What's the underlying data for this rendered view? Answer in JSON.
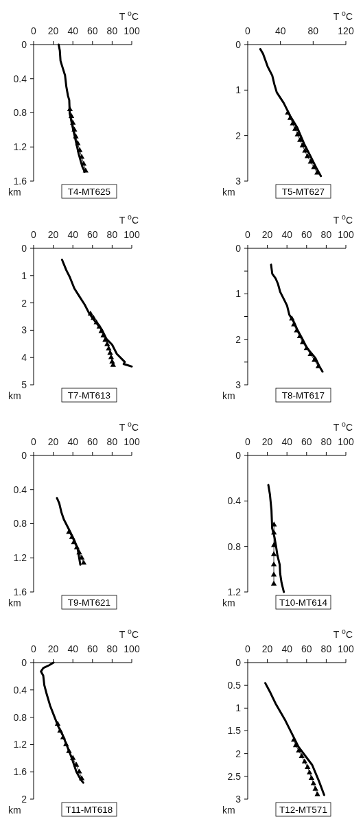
{
  "chart_data": [
    {
      "type": "line",
      "title": "T4-MT625",
      "xlabel": "T $^{o}$C",
      "ylabel": "km",
      "xlim": [
        0,
        100
      ],
      "xticks": [
        0,
        20,
        40,
        60,
        80,
        100
      ],
      "ylim": [
        1.6,
        0
      ],
      "yticks": [
        0,
        0.4,
        0.8,
        1.2,
        1.6
      ],
      "series": [
        {
          "color": "#000000",
          "marker": "none",
          "x": [
            25.5,
            26.7,
            27.4,
            29,
            32,
            33.3,
            35,
            36.3,
            36.8,
            39.8,
            42.6,
            46.1,
            49.6,
            52
          ],
          "values": [
            0,
            0.07,
            0.19,
            0.25,
            0.36,
            0.49,
            0.6,
            0.65,
            0.81,
            0.97,
            1.11,
            1.29,
            1.43,
            1.49
          ]
        },
        {
          "color": "#000000",
          "marker": "triangle",
          "x": [
            37,
            38.5,
            40,
            41.5,
            43,
            45,
            47,
            49,
            51,
            53
          ],
          "values": [
            0.76,
            0.84,
            0.92,
            1.0,
            1.08,
            1.16,
            1.24,
            1.32,
            1.4,
            1.48
          ]
        }
      ]
    },
    {
      "type": "line",
      "title": "T5-MT627",
      "xlabel": "T $^{o}$C",
      "ylabel": "km",
      "xlim": [
        0,
        120
      ],
      "xticks": [
        0,
        40,
        80,
        120
      ],
      "ylim": [
        3,
        0
      ],
      "yticks": [
        0,
        1,
        2,
        3
      ],
      "series": [
        {
          "color": "#000000",
          "marker": "none",
          "x": [
            15.4,
            18.7,
            24.3,
            30,
            32.7,
            35.5,
            43.9,
            52.3,
            60.7,
            69,
            77.5,
            84.5,
            89.5
          ],
          "values": [
            0.1,
            0.2,
            0.48,
            0.68,
            0.88,
            1.05,
            1.28,
            1.58,
            1.83,
            2.18,
            2.48,
            2.73,
            2.89
          ]
        },
        {
          "color": "#000000",
          "marker": "triangle",
          "x": [
            49,
            52,
            55,
            58,
            61,
            64,
            67,
            70,
            73,
            77,
            81,
            85
          ],
          "values": [
            1.5,
            1.62,
            1.74,
            1.86,
            1.98,
            2.1,
            2.22,
            2.34,
            2.46,
            2.58,
            2.7,
            2.82
          ]
        }
      ]
    },
    {
      "type": "line",
      "title": "T7-MT613",
      "xlabel": "T $^{o}$C",
      "ylabel": "km",
      "xlim": [
        0,
        100
      ],
      "xticks": [
        0,
        20,
        40,
        60,
        80,
        100
      ],
      "ylim": [
        5,
        0
      ],
      "yticks": [
        0,
        1,
        2,
        3,
        4,
        5
      ],
      "series": [
        {
          "color": "#000000",
          "marker": "none",
          "x": [
            29,
            33.3,
            36.8,
            41.5,
            47.3,
            52,
            56.7,
            63.7,
            69.6,
            74.2,
            80,
            84.8,
            90.6,
            92.9,
            91.8,
            96.5,
            100
          ],
          "values": [
            0.42,
            0.8,
            1.05,
            1.47,
            1.8,
            2.06,
            2.39,
            2.73,
            2.98,
            3.32,
            3.53,
            3.87,
            4.08,
            4.16,
            4.24,
            4.29,
            4.33
          ]
        },
        {
          "color": "#000000",
          "marker": "triangle",
          "x": [
            58,
            61,
            64,
            67,
            69,
            71,
            73,
            75,
            76.5,
            78,
            79,
            80,
            81
          ],
          "values": [
            2.4,
            2.56,
            2.72,
            2.88,
            3.04,
            3.2,
            3.36,
            3.52,
            3.68,
            3.84,
            4.0,
            4.16,
            4.28
          ]
        }
      ]
    },
    {
      "type": "line",
      "title": "T8-MT617",
      "xlabel": "T $^{o}$C",
      "ylabel": "km",
      "xlim": [
        0,
        100
      ],
      "xticks": [
        0,
        20,
        40,
        60,
        80,
        100
      ],
      "ylim": [
        3,
        0
      ],
      "yticks": [
        0,
        {
          "value": 0.5,
          "label": null
        },
        1,
        {
          "value": 1.5,
          "label": null
        },
        2,
        {
          "value": 2.5,
          "label": null
        },
        3
      ],
      "series": [
        {
          "color": "#000000",
          "marker": "none",
          "x": [
            23.8,
            25,
            28.4,
            30.8,
            33.1,
            37.8,
            40.1,
            42.4,
            47.1,
            50.6,
            55.2,
            59.9,
            64.6,
            69.2,
            72.7,
            76.2
          ],
          "values": [
            0.36,
            0.56,
            0.66,
            0.78,
            0.96,
            1.16,
            1.26,
            1.46,
            1.62,
            1.79,
            1.97,
            2.17,
            2.3,
            2.42,
            2.58,
            2.71
          ]
        },
        {
          "color": "#000000",
          "marker": "triangle",
          "x": [
            45,
            47,
            50,
            53,
            56,
            60,
            64,
            68,
            72
          ],
          "values": [
            1.55,
            1.68,
            1.81,
            1.94,
            2.07,
            2.2,
            2.33,
            2.46,
            2.6
          ]
        }
      ]
    },
    {
      "type": "line",
      "title": "T9-MT621",
      "xlabel": "T $^{o}$C",
      "ylabel": "km",
      "xlim": [
        0,
        100
      ],
      "xticks": [
        0,
        20,
        40,
        60,
        80,
        100
      ],
      "ylim": [
        1.6,
        0
      ],
      "yticks": [
        0,
        0.4,
        0.8,
        1.2,
        1.6
      ],
      "series": [
        {
          "color": "#000000",
          "marker": "none",
          "x": [
            23.8,
            26.1,
            28.4,
            30.8,
            36.6,
            41.3,
            44.8,
            46.4,
            47.6
          ],
          "values": [
            0.5,
            0.56,
            0.67,
            0.75,
            0.88,
            0.99,
            1.09,
            1.2,
            1.28
          ]
        },
        {
          "color": "#000000",
          "marker": "triangle",
          "x": [
            36,
            39,
            41,
            44,
            46.5,
            49,
            51
          ],
          "values": [
            0.9,
            0.96,
            1.02,
            1.08,
            1.14,
            1.2,
            1.26
          ]
        }
      ]
    },
    {
      "type": "line",
      "title": "T10-MT614",
      "xlabel": "T $^{o}$C",
      "ylabel": "km",
      "xlim": [
        0,
        100
      ],
      "xticks": [
        0,
        20,
        40,
        60,
        80,
        100
      ],
      "ylim": [
        1.2,
        0
      ],
      "yticks": [
        0,
        0.4,
        0.8,
        1.2
      ],
      "series": [
        {
          "color": "#000000",
          "marker": "none",
          "x": [
            21,
            22.6,
            24.2,
            24.9,
            27.3,
            28.9,
            30.3,
            32.6,
            33.1,
            34.5,
            36.8
          ],
          "values": [
            0.26,
            0.34,
            0.48,
            0.64,
            0.72,
            0.8,
            0.88,
            0.96,
            1.04,
            1.12,
            1.2
          ]
        },
        {
          "color": "#000000",
          "marker": "triangle",
          "x": [
            26.8,
            26.7,
            26.7,
            26.6,
            26.6,
            26.6,
            26.6
          ],
          "values": [
            0.61,
            0.68,
            0.79,
            0.87,
            0.96,
            1.05,
            1.13
          ]
        }
      ]
    },
    {
      "type": "line",
      "title": "T11-MT618",
      "xlabel": "T $^{o}$C",
      "ylabel": "km",
      "xlim": [
        0,
        100
      ],
      "xticks": [
        0,
        20,
        40,
        60,
        80,
        100
      ],
      "ylim": [
        2,
        0
      ],
      "yticks": [
        0,
        0.4,
        0.8,
        1.2,
        1.6,
        2
      ],
      "series": [
        {
          "color": "#000000",
          "marker": "none",
          "x": [
            20.3,
            15.6,
            9.8,
            7.5,
            9.8,
            10.9,
            13.3,
            16.8,
            20.3,
            24.9,
            29.6,
            34.3,
            38.9,
            43.6,
            48.3,
            50.6
          ],
          "values": [
            0,
            0.04,
            0.08,
            0.13,
            0.19,
            0.33,
            0.46,
            0.63,
            0.76,
            0.93,
            1.06,
            1.23,
            1.4,
            1.6,
            1.72,
            1.76
          ]
        },
        {
          "color": "#000000",
          "marker": "triangle",
          "x": [
            24.5,
            27,
            30,
            33,
            36,
            40,
            43.5,
            46.5,
            49
          ],
          "values": [
            0.9,
            1.0,
            1.1,
            1.2,
            1.3,
            1.4,
            1.5,
            1.6,
            1.7
          ]
        }
      ]
    },
    {
      "type": "line",
      "title": "T12-MT571",
      "xlabel": "T $^{o}$C",
      "ylabel": "km",
      "xlim": [
        0,
        100
      ],
      "xticks": [
        0,
        20,
        40,
        60,
        80,
        100
      ],
      "ylim": [
        3,
        0
      ],
      "yticks": [
        0,
        0.5,
        1,
        1.5,
        2,
        2.5,
        3
      ],
      "series": [
        {
          "color": "#000000",
          "marker": "none",
          "x": [
            17.9,
            22.6,
            28.4,
            37.8,
            44.8,
            51.7,
            58.7,
            65.7,
            72.7,
            77.9
          ],
          "values": [
            0.45,
            0.64,
            0.9,
            1.25,
            1.55,
            1.85,
            2.05,
            2.25,
            2.61,
            2.91
          ]
        },
        {
          "color": "#000000",
          "marker": "triangle",
          "x": [
            47,
            49,
            52,
            55,
            58,
            61,
            63,
            65,
            67,
            69,
            71
          ],
          "values": [
            1.7,
            1.82,
            1.94,
            2.06,
            2.18,
            2.3,
            2.42,
            2.54,
            2.66,
            2.78,
            2.9
          ]
        }
      ]
    }
  ]
}
